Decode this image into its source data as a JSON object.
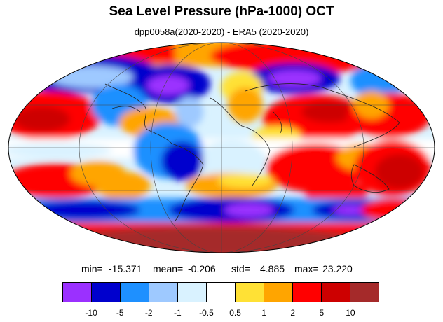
{
  "title": "Sea Level Pressure (hPa-1000) OCT",
  "subtitle": "dpp0058a(2020-2020) - ERA5 (2020-2020)",
  "stats": {
    "min_label": "min=",
    "min": "-15.371",
    "mean_label": "mean=",
    "mean": "-0.206",
    "std_label": "std=",
    "std": "4.885",
    "max_label": "max=",
    "max": "23.220"
  },
  "colorbar": {
    "colors": [
      "#9b30ff",
      "#0000cd",
      "#1e90ff",
      "#9ec9ff",
      "#d9f2ff",
      "#ffffff",
      "#ffe135",
      "#ffa500",
      "#ff0000",
      "#cd0000",
      "#a52a2a"
    ],
    "labels": [
      "-10",
      "-5",
      "-2",
      "-1",
      "-0.5",
      "0.5",
      "1",
      "2",
      "5",
      "10"
    ]
  },
  "map": {
    "projection": "mollweide"
  }
}
